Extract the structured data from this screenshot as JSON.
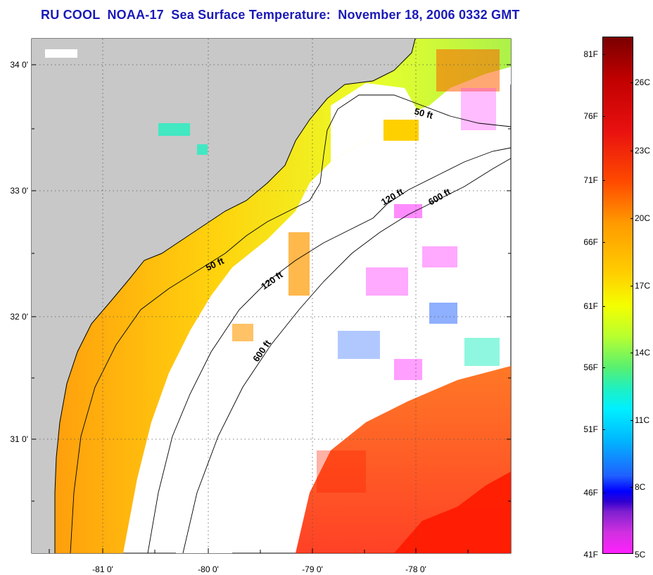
{
  "title": "RU COOL  NOAA-17  Sea Surface Temperature:  November 18, 2006 0332 GMT",
  "latitude_labels": [
    "34 0'",
    "33 0'",
    "32 0'",
    "31 0'"
  ],
  "longitude_labels": [
    "-81 0'",
    "-80 0'",
    "-79 0'",
    "-78 0'"
  ],
  "isobath_labels": [
    "50 ft",
    "120 ft",
    "600 ft",
    "50 ft",
    "120 ft",
    "600 ft"
  ],
  "colorbar": {
    "fahrenheit_labels": [
      "81F",
      "76F",
      "71F",
      "66F",
      "61F",
      "56F",
      "51F",
      "46F",
      "41F"
    ],
    "celsius_labels": [
      "26C",
      "23C",
      "20C",
      "17C",
      "14C",
      "11C",
      "8C",
      "5C"
    ]
  },
  "colors": {
    "title": "#1a1ab8",
    "land": "#c8c8c8",
    "cloud": "#ffffff"
  }
}
